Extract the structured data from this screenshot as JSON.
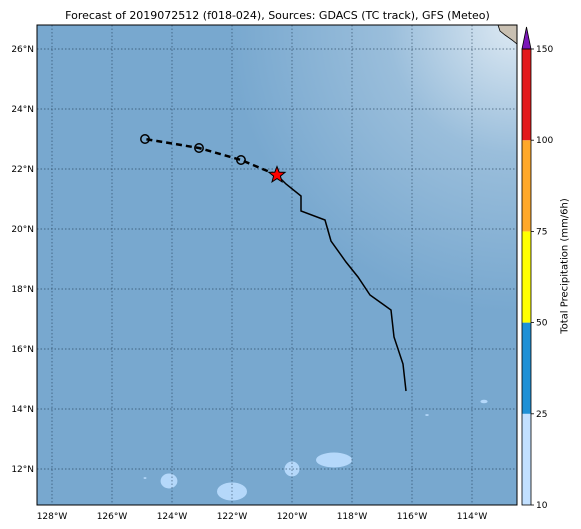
{
  "title": "Forecast of 2019072512 (f018-024), Sources: GDACS (TC track), GFS (Meteo)",
  "map": {
    "lon_range": [
      -128.5,
      -112.5
    ],
    "lat_range": [
      10.8,
      26.8
    ],
    "lon_ticks": [
      {
        "value": -128,
        "label": "128°W"
      },
      {
        "value": -126,
        "label": "126°W"
      },
      {
        "value": -124,
        "label": "124°W"
      },
      {
        "value": -122,
        "label": "122°W"
      },
      {
        "value": -120,
        "label": "120°W"
      },
      {
        "value": -118,
        "label": "118°W"
      },
      {
        "value": -116,
        "label": "116°W"
      },
      {
        "value": -114,
        "label": "114°W"
      }
    ],
    "lat_ticks": [
      {
        "value": 12,
        "label": "12°N"
      },
      {
        "value": 14,
        "label": "14°N"
      },
      {
        "value": 16,
        "label": "16°N"
      },
      {
        "value": 18,
        "label": "18°N"
      },
      {
        "value": 20,
        "label": "20°N"
      },
      {
        "value": 22,
        "label": "22°N"
      },
      {
        "value": 24,
        "label": "24°N"
      },
      {
        "value": 26,
        "label": "26°N"
      }
    ],
    "ocean_color": "#78a8cf",
    "grid": true,
    "past_track": [
      [
        -116.2,
        14.6
      ],
      [
        -116.3,
        15.5
      ],
      [
        -116.6,
        16.4
      ],
      [
        -116.7,
        17.3
      ],
      [
        -117.4,
        17.8
      ],
      [
        -117.8,
        18.4
      ],
      [
        -118.2,
        18.9
      ],
      [
        -118.7,
        19.6
      ],
      [
        -118.9,
        20.3
      ],
      [
        -119.7,
        20.6
      ],
      [
        -119.7,
        21.1
      ],
      [
        -120.2,
        21.5
      ],
      [
        -120.5,
        21.8
      ]
    ],
    "current_position": [
      -120.5,
      21.8
    ],
    "forecast_track": [
      [
        -120.5,
        21.8
      ],
      [
        -121.7,
        22.3
      ],
      [
        -123.1,
        22.7
      ],
      [
        -124.9,
        23.0
      ]
    ],
    "forecast_points": [
      [
        -121.7,
        22.3
      ],
      [
        -123.1,
        22.7
      ],
      [
        -124.9,
        23.0
      ]
    ],
    "precip_patches": [
      {
        "lon": -124.1,
        "lat": 11.6,
        "rx": 0.28,
        "ry": 0.25
      },
      {
        "lon": -122.0,
        "lat": 11.25,
        "rx": 0.5,
        "ry": 0.3
      },
      {
        "lon": -120.0,
        "lat": 12.0,
        "rx": 0.25,
        "ry": 0.25
      },
      {
        "lon": -118.6,
        "lat": 12.3,
        "rx": 0.6,
        "ry": 0.25
      },
      {
        "lon": -113.6,
        "lat": 14.25,
        "rx": 0.12,
        "ry": 0.06
      },
      {
        "lon": -115.5,
        "lat": 13.8,
        "rx": 0.06,
        "ry": 0.03
      },
      {
        "lon": -124.9,
        "lat": 11.7,
        "rx": 0.05,
        "ry": 0.03
      }
    ],
    "precip_patch_color": "#b5d8fa",
    "land_color": "#c9c0b2"
  },
  "colorbar": {
    "label": "Total Precipitation (mm/6h)",
    "range": [
      10,
      150
    ],
    "ticks": [
      {
        "value": 10,
        "label": "10"
      },
      {
        "value": 25,
        "label": "25"
      },
      {
        "value": 50,
        "label": "50"
      },
      {
        "value": 75,
        "label": "75"
      },
      {
        "value": 100,
        "label": "100"
      },
      {
        "value": 150,
        "label": "150"
      }
    ],
    "bands": [
      {
        "from": 10,
        "to": 25,
        "color": "#c2e0ff"
      },
      {
        "from": 25,
        "to": 50,
        "color": "#1e90d6"
      },
      {
        "from": 50,
        "to": 75,
        "color": "#ffff00"
      },
      {
        "from": 75,
        "to": 100,
        "color": "#ffa82a"
      },
      {
        "from": 100,
        "to": 150,
        "color": "#e31a1c"
      }
    ],
    "extend_color": "#7b16b8"
  }
}
